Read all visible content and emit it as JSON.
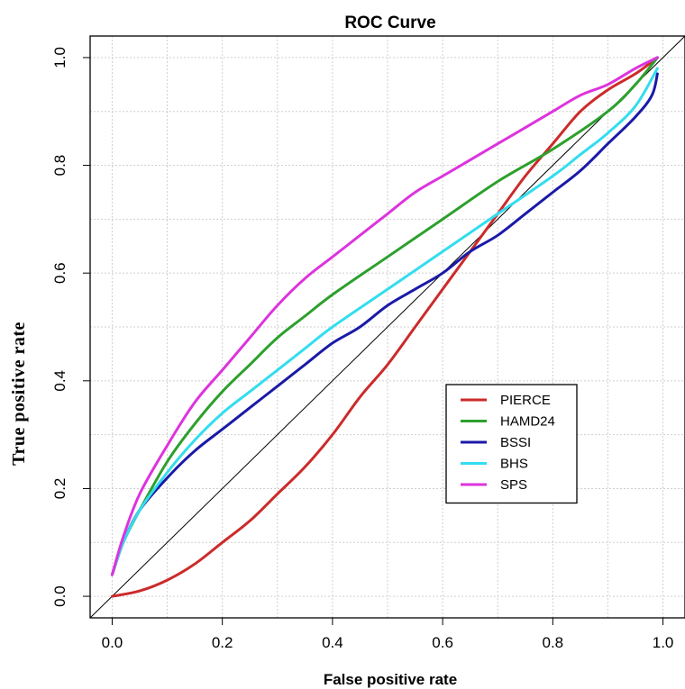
{
  "chart_data": {
    "type": "line",
    "title": "ROC Curve",
    "xlabel": "False positive rate",
    "ylabel": "True positive rate",
    "xlim": [
      -0.04,
      1.04
    ],
    "ylim": [
      -0.04,
      1.04
    ],
    "x_ticks": [
      "0.0",
      "0.2",
      "0.4",
      "0.6",
      "0.8",
      "1.0"
    ],
    "y_ticks": [
      "0.0",
      "0.2",
      "0.4",
      "0.6",
      "0.8",
      "1.0"
    ],
    "grid": true,
    "legend_position": "lower-right",
    "diagonal_reference": true,
    "series": [
      {
        "name": "PIERCE",
        "color": "#cc2a2a",
        "points": [
          [
            0.0,
            0.0
          ],
          [
            0.05,
            0.01
          ],
          [
            0.1,
            0.03
          ],
          [
            0.15,
            0.06
          ],
          [
            0.2,
            0.1
          ],
          [
            0.25,
            0.14
          ],
          [
            0.3,
            0.19
          ],
          [
            0.35,
            0.24
          ],
          [
            0.4,
            0.3
          ],
          [
            0.45,
            0.37
          ],
          [
            0.5,
            0.43
          ],
          [
            0.55,
            0.5
          ],
          [
            0.6,
            0.57
          ],
          [
            0.65,
            0.64
          ],
          [
            0.7,
            0.71
          ],
          [
            0.75,
            0.78
          ],
          [
            0.8,
            0.84
          ],
          [
            0.85,
            0.9
          ],
          [
            0.9,
            0.94
          ],
          [
            0.95,
            0.97
          ],
          [
            0.99,
            1.0
          ]
        ]
      },
      {
        "name": "HAMD24",
        "color": "#2ca02c",
        "points": [
          [
            0.0,
            0.04
          ],
          [
            0.02,
            0.1
          ],
          [
            0.05,
            0.16
          ],
          [
            0.1,
            0.25
          ],
          [
            0.15,
            0.32
          ],
          [
            0.2,
            0.38
          ],
          [
            0.25,
            0.43
          ],
          [
            0.3,
            0.48
          ],
          [
            0.35,
            0.52
          ],
          [
            0.4,
            0.56
          ],
          [
            0.5,
            0.63
          ],
          [
            0.6,
            0.7
          ],
          [
            0.7,
            0.77
          ],
          [
            0.8,
            0.83
          ],
          [
            0.9,
            0.9
          ],
          [
            0.95,
            0.95
          ],
          [
            0.99,
            1.0
          ]
        ]
      },
      {
        "name": "BSSI",
        "color": "#1a1aa8",
        "points": [
          [
            0.0,
            0.04
          ],
          [
            0.02,
            0.1
          ],
          [
            0.05,
            0.16
          ],
          [
            0.1,
            0.22
          ],
          [
            0.15,
            0.27
          ],
          [
            0.2,
            0.31
          ],
          [
            0.25,
            0.35
          ],
          [
            0.3,
            0.39
          ],
          [
            0.35,
            0.43
          ],
          [
            0.4,
            0.47
          ],
          [
            0.45,
            0.5
          ],
          [
            0.5,
            0.54
          ],
          [
            0.55,
            0.57
          ],
          [
            0.6,
            0.6
          ],
          [
            0.65,
            0.64
          ],
          [
            0.7,
            0.67
          ],
          [
            0.75,
            0.71
          ],
          [
            0.8,
            0.75
          ],
          [
            0.85,
            0.79
          ],
          [
            0.9,
            0.84
          ],
          [
            0.95,
            0.89
          ],
          [
            0.98,
            0.93
          ],
          [
            0.99,
            0.97
          ]
        ]
      },
      {
        "name": "BHS",
        "color": "#33ddee",
        "points": [
          [
            0.0,
            0.04
          ],
          [
            0.02,
            0.1
          ],
          [
            0.05,
            0.16
          ],
          [
            0.1,
            0.23
          ],
          [
            0.15,
            0.29
          ],
          [
            0.2,
            0.34
          ],
          [
            0.25,
            0.38
          ],
          [
            0.3,
            0.42
          ],
          [
            0.35,
            0.46
          ],
          [
            0.4,
            0.5
          ],
          [
            0.5,
            0.57
          ],
          [
            0.6,
            0.64
          ],
          [
            0.7,
            0.71
          ],
          [
            0.8,
            0.78
          ],
          [
            0.85,
            0.82
          ],
          [
            0.9,
            0.86
          ],
          [
            0.95,
            0.91
          ],
          [
            0.99,
            0.98
          ]
        ]
      },
      {
        "name": "SPS",
        "color": "#dd33dd",
        "points": [
          [
            0.0,
            0.04
          ],
          [
            0.02,
            0.11
          ],
          [
            0.05,
            0.19
          ],
          [
            0.1,
            0.28
          ],
          [
            0.15,
            0.36
          ],
          [
            0.2,
            0.42
          ],
          [
            0.25,
            0.48
          ],
          [
            0.3,
            0.54
          ],
          [
            0.35,
            0.59
          ],
          [
            0.4,
            0.63
          ],
          [
            0.45,
            0.67
          ],
          [
            0.5,
            0.71
          ],
          [
            0.55,
            0.75
          ],
          [
            0.6,
            0.78
          ],
          [
            0.65,
            0.81
          ],
          [
            0.7,
            0.84
          ],
          [
            0.75,
            0.87
          ],
          [
            0.8,
            0.9
          ],
          [
            0.85,
            0.93
          ],
          [
            0.9,
            0.95
          ],
          [
            0.95,
            0.98
          ],
          [
            0.99,
            1.0
          ]
        ]
      }
    ]
  }
}
